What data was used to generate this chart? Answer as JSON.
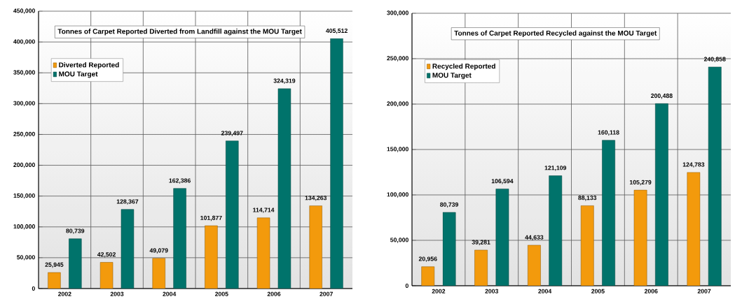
{
  "chart_data": [
    {
      "type": "bar",
      "title": "Tonnes of Carpet Reported Diverted from Landfill against the MOU Target",
      "categories": [
        "2002",
        "2003",
        "2004",
        "2005",
        "2006",
        "2007"
      ],
      "series": [
        {
          "name": "Diverted Reported",
          "color": "#f39a0c",
          "values": [
            25945,
            42502,
            49079,
            101877,
            114714,
            134263
          ],
          "value_labels": [
            "25,945",
            "42,502",
            "49,079",
            "101,877",
            "114,714",
            "134,263"
          ]
        },
        {
          "name": "MOU Target",
          "color": "#00736b",
          "values": [
            80739,
            128367,
            162386,
            239497,
            324319,
            405512
          ],
          "value_labels": [
            "80,739",
            "128,367",
            "162,386",
            "239,497",
            "324,319",
            "405,512"
          ]
        }
      ],
      "ylim": [
        0,
        450000
      ],
      "yticks": [
        0,
        {
          "value": 50000,
          "label": "50,000"
        },
        {
          "value": 100000,
          "label": "100,000"
        },
        {
          "value": 150000,
          "label": "150,000"
        },
        {
          "value": 200000,
          "label": "200,000"
        },
        {
          "value": 250000,
          "label": "250,000"
        },
        {
          "value": 300000,
          "label": "300,000"
        },
        {
          "value": 350000,
          "label": "350,000"
        },
        {
          "value": 400000,
          "label": "400,000"
        },
        {
          "value": 450000,
          "label": "450,000"
        }
      ],
      "grid": true,
      "legend": "top left"
    },
    {
      "type": "bar",
      "title": "Tonnes of Carpet Reported Recycled against the MOU Target",
      "categories": [
        "2002",
        "2003",
        "2004",
        "2005",
        "2006",
        "2007"
      ],
      "series": [
        {
          "name": "Recycled Reported",
          "color": "#f39a0c",
          "values": [
            20956,
            39281,
            44633,
            88133,
            105279,
            124783
          ],
          "value_labels": [
            "20,956",
            "39,281",
            "44,633",
            "88,133",
            "105,279",
            "124,783"
          ]
        },
        {
          "name": "MOU Target",
          "color": "#00736b",
          "values": [
            80739,
            106594,
            121109,
            160118,
            200488,
            240858
          ],
          "value_labels": [
            "80,739",
            "106,594",
            "121,109",
            "160,118",
            "200,488",
            "240,858"
          ]
        }
      ],
      "ylim": [
        0,
        300000
      ],
      "yticks": [
        0,
        {
          "value": 50000,
          "label": "50,000"
        },
        {
          "value": 100000,
          "label": "100,000"
        },
        {
          "value": 150000,
          "label": "150,000"
        },
        {
          "value": 200000,
          "label": "200,000"
        },
        {
          "value": 250000,
          "label": "250,000"
        },
        {
          "value": 300000,
          "label": "300,000"
        }
      ],
      "grid": true,
      "legend": "top left"
    }
  ]
}
